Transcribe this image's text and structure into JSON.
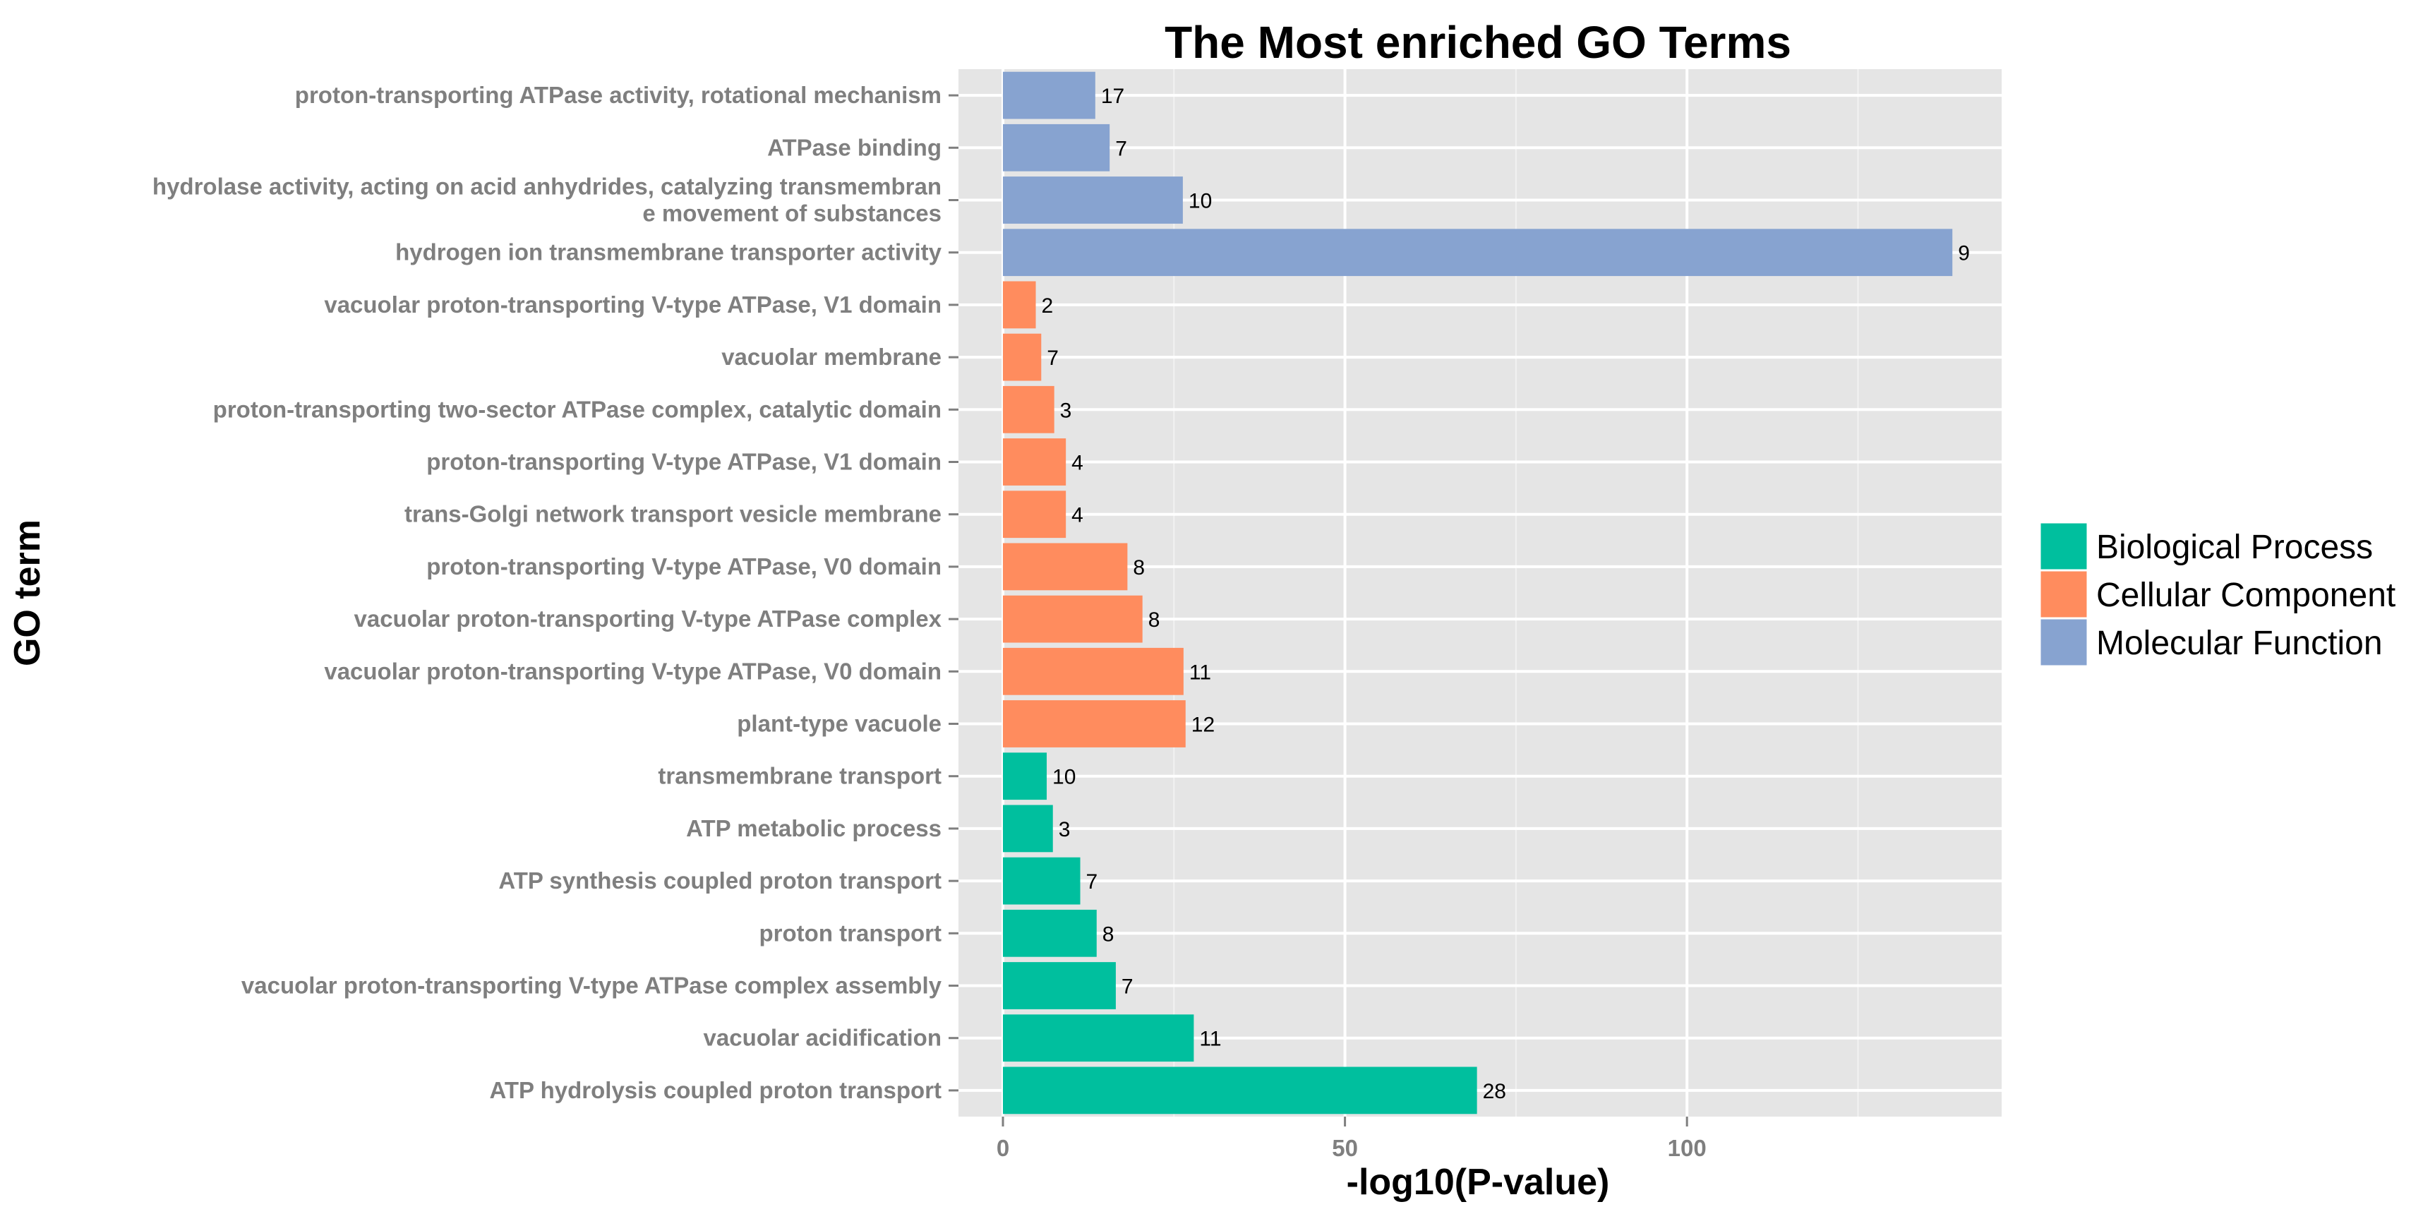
{
  "chart_data": {
    "type": "bar",
    "orientation": "horizontal",
    "title": "The Most enriched GO Terms",
    "xlabel": "-log10(P-value)",
    "ylabel": "GO term",
    "xlim": [
      -6.5,
      146
    ],
    "xticks": [
      0,
      50,
      100
    ],
    "grid": true,
    "legend_position": "right",
    "legend": [
      {
        "name": "Biological Process",
        "color": "#00BF9E"
      },
      {
        "name": "Cellular Component",
        "color": "#FF8C5E"
      },
      {
        "name": "Molecular Function",
        "color": "#87A3D0"
      }
    ],
    "bars": [
      {
        "term": [
          "proton-transporting ATPase activity, rotational mechanism"
        ],
        "value": 13.5,
        "count": "17",
        "category": "Molecular Function"
      },
      {
        "term": [
          "ATPase binding"
        ],
        "value": 15.6,
        "count": "7",
        "category": "Molecular Function"
      },
      {
        "term": [
          "hydrolase activity, acting on acid anhydrides, catalyzing transmembran",
          "e movement of substances"
        ],
        "value": 26.3,
        "count": "10",
        "category": "Molecular Function"
      },
      {
        "term": [
          "hydrogen ion transmembrane transporter activity"
        ],
        "value": 138.8,
        "count": "9",
        "category": "Molecular Function"
      },
      {
        "term": [
          "vacuolar proton-transporting V-type ATPase, V1 domain"
        ],
        "value": 4.8,
        "count": "2",
        "category": "Cellular Component"
      },
      {
        "term": [
          "vacuolar membrane"
        ],
        "value": 5.6,
        "count": "7",
        "category": "Cellular Component"
      },
      {
        "term": [
          "proton-transporting two-sector ATPase complex, catalytic domain"
        ],
        "value": 7.5,
        "count": "3",
        "category": "Cellular Component"
      },
      {
        "term": [
          "proton-transporting V-type ATPase, V1 domain"
        ],
        "value": 9.2,
        "count": "4",
        "category": "Cellular Component"
      },
      {
        "term": [
          "trans-Golgi network transport vesicle membrane"
        ],
        "value": 9.2,
        "count": "4",
        "category": "Cellular Component"
      },
      {
        "term": [
          "proton-transporting V-type ATPase, V0 domain"
        ],
        "value": 18.2,
        "count": "8",
        "category": "Cellular Component"
      },
      {
        "term": [
          "vacuolar proton-transporting V-type ATPase complex"
        ],
        "value": 20.4,
        "count": "8",
        "category": "Cellular Component"
      },
      {
        "term": [
          "vacuolar proton-transporting V-type ATPase, V0 domain"
        ],
        "value": 26.4,
        "count": "11",
        "category": "Cellular Component"
      },
      {
        "term": [
          "plant-type vacuole"
        ],
        "value": 26.7,
        "count": "12",
        "category": "Cellular Component"
      },
      {
        "term": [
          "transmembrane transport"
        ],
        "value": 6.4,
        "count": "10",
        "category": "Biological Process"
      },
      {
        "term": [
          "ATP metabolic process"
        ],
        "value": 7.3,
        "count": "3",
        "category": "Biological Process"
      },
      {
        "term": [
          "ATP synthesis coupled proton transport"
        ],
        "value": 11.3,
        "count": "7",
        "category": "Biological Process"
      },
      {
        "term": [
          "proton transport"
        ],
        "value": 13.7,
        "count": "8",
        "category": "Biological Process"
      },
      {
        "term": [
          "vacuolar proton-transporting V-type ATPase complex assembly"
        ],
        "value": 16.5,
        "count": "7",
        "category": "Biological Process"
      },
      {
        "term": [
          "vacuolar acidification"
        ],
        "value": 27.9,
        "count": "11",
        "category": "Biological Process"
      },
      {
        "term": [
          "ATP hydrolysis coupled proton transport"
        ],
        "value": 69.3,
        "count": "28",
        "category": "Biological Process"
      }
    ]
  }
}
